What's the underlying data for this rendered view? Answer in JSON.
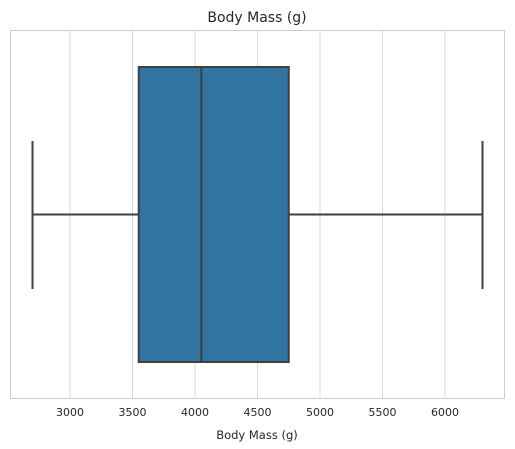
{
  "chart_data": {
    "type": "box",
    "title": "Body Mass (g)",
    "xlabel": "Body Mass (g)",
    "ylabel": "",
    "xlim": [
      2520,
      6480
    ],
    "xticks": [
      3000,
      3500,
      4000,
      4500,
      5000,
      5500,
      6000
    ],
    "grid": "vertical",
    "box": {
      "whisker_low": 2700,
      "q1": 3550,
      "median": 4050,
      "q3": 4750,
      "whisker_high": 6300
    },
    "colors": {
      "box_fill": "#3274a1",
      "line": "#3f3f3f",
      "grid": "#d9d9d9",
      "frame": "#cccccc"
    }
  }
}
